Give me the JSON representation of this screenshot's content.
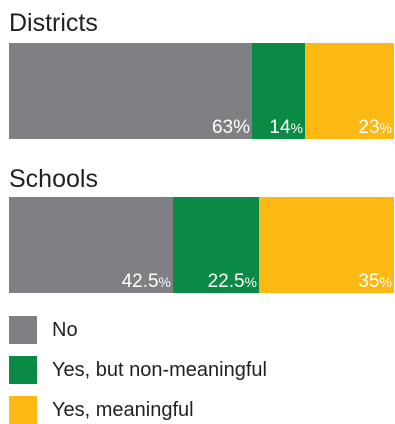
{
  "chart_data": {
    "type": "bar",
    "orientation": "horizontal-stacked-100",
    "categories": [
      "Districts",
      "Schools"
    ],
    "series": [
      {
        "name": "No",
        "values": [
          63,
          42.5
        ],
        "labels": [
          "63",
          "42.5"
        ],
        "color": "#808084"
      },
      {
        "name": "Yes, but non-meaningful",
        "values": [
          14,
          22.5
        ],
        "labels": [
          "14",
          "22.5"
        ],
        "color": "#0a8a45"
      },
      {
        "name": "Yes, meaningful",
        "values": [
          23,
          35
        ],
        "labels": [
          "23",
          "35"
        ],
        "color": "#fdb813"
      }
    ],
    "percent_sign": "%",
    "xlim": [
      0,
      100
    ]
  }
}
